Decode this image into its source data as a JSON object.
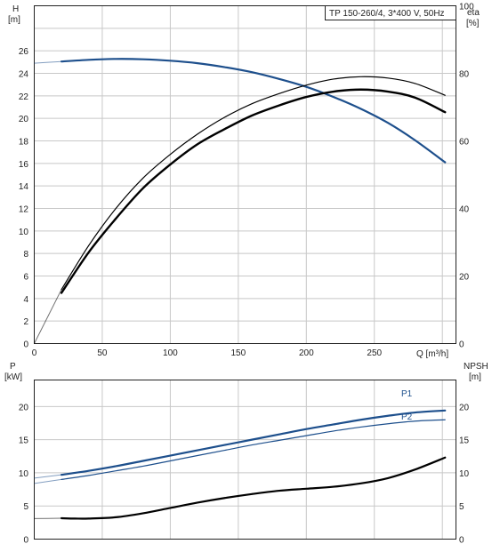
{
  "colors": {
    "blue": "#1d4f8c",
    "black": "#000000",
    "grid": "#c8c8c8",
    "frame": "#222222"
  },
  "chart_data": [
    {
      "type": "line",
      "title": "TP 150-260/4, 3*400 V, 50Hz",
      "xlabel": "Q [m³/h]",
      "ylabel_left": [
        "H",
        "[m]"
      ],
      "ylabel_right": [
        "eta",
        "[%]"
      ],
      "xlim": [
        0,
        310
      ],
      "ylim_left": [
        0,
        30
      ],
      "ylim_right": [
        0,
        100
      ],
      "x_ticks": [
        "0",
        "50",
        "100",
        "150",
        "200",
        "250"
      ],
      "x_tick_values": [
        0,
        50,
        100,
        150,
        200,
        250
      ],
      "y_left_ticks": [
        "0",
        "2",
        "4",
        "6",
        "8",
        "10",
        "12",
        "14",
        "16",
        "18",
        "20",
        "22",
        "24",
        "26"
      ],
      "y_left_tick_values": [
        0,
        2,
        4,
        6,
        8,
        10,
        12,
        14,
        16,
        18,
        20,
        22,
        24,
        26
      ],
      "y_right_ticks": [
        "0",
        "20",
        "40",
        "60",
        "80",
        "100"
      ],
      "y_right_tick_values": [
        0,
        20,
        40,
        60,
        80,
        100
      ],
      "grid": true,
      "series": [
        {
          "axis": "left",
          "color": "#1d4f8c",
          "width": 2.2,
          "x": [
            0,
            20,
            40,
            60,
            80,
            100,
            120,
            140,
            160,
            180,
            200,
            220,
            240,
            260,
            280,
            302
          ],
          "y": [
            24.9,
            25.05,
            25.2,
            25.28,
            25.25,
            25.12,
            24.9,
            24.55,
            24.1,
            23.5,
            22.8,
            21.9,
            20.85,
            19.6,
            18.05,
            16.1
          ],
          "dashed_until": 20
        },
        {
          "axis": "right",
          "color": "#000000",
          "width": 1.2,
          "x": [
            0,
            20,
            40,
            60,
            80,
            100,
            120,
            140,
            160,
            180,
            200,
            220,
            240,
            260,
            280,
            302
          ],
          "y": [
            0,
            16,
            29,
            40,
            49,
            56,
            62,
            67,
            71,
            74,
            76.5,
            78.3,
            79,
            78.6,
            77,
            73.5
          ],
          "dashed_until": 20
        },
        {
          "axis": "right",
          "color": "#000000",
          "width": 2.4,
          "x": [
            20,
            40,
            60,
            80,
            100,
            120,
            140,
            160,
            180,
            200,
            220,
            240,
            260,
            280,
            302
          ],
          "y": [
            15,
            27,
            37,
            46,
            53,
            59,
            63.5,
            67.5,
            70.5,
            73,
            74.6,
            75.2,
            74.6,
            72.8,
            68.5
          ]
        }
      ]
    },
    {
      "type": "line",
      "ylabel_left": [
        "P",
        "[kW]"
      ],
      "ylabel_right": [
        "NPSH",
        "[m]"
      ],
      "xlim": [
        0,
        310
      ],
      "ylim_left": [
        0,
        24
      ],
      "ylim_right": [
        0,
        24
      ],
      "y_left_ticks": [
        "0",
        "5",
        "10",
        "15",
        "20"
      ],
      "y_left_tick_values": [
        0,
        5,
        10,
        15,
        20
      ],
      "y_right_ticks": [
        "0",
        "5",
        "10",
        "15",
        "20"
      ],
      "y_right_tick_values": [
        0,
        5,
        10,
        15,
        20
      ],
      "grid": true,
      "series": [
        {
          "name": "P1",
          "axis": "left",
          "color": "#1d4f8c",
          "width": 2.2,
          "x": [
            0,
            20,
            40,
            60,
            80,
            100,
            120,
            140,
            160,
            180,
            200,
            220,
            240,
            260,
            280,
            302
          ],
          "y": [
            9.2,
            9.7,
            10.3,
            11.0,
            11.8,
            12.6,
            13.4,
            14.2,
            15.0,
            15.8,
            16.6,
            17.3,
            18.0,
            18.6,
            19.1,
            19.4
          ],
          "dashed_until": 20
        },
        {
          "name": "P2",
          "axis": "left",
          "color": "#1d4f8c",
          "width": 1.2,
          "x": [
            0,
            20,
            40,
            60,
            80,
            100,
            120,
            140,
            160,
            180,
            200,
            220,
            240,
            260,
            280,
            302
          ],
          "y": [
            8.4,
            9.0,
            9.6,
            10.3,
            11.0,
            11.8,
            12.6,
            13.4,
            14.2,
            14.9,
            15.6,
            16.3,
            16.9,
            17.4,
            17.8,
            18.0
          ],
          "dashed_until": 20
        },
        {
          "axis": "right",
          "color": "#000000",
          "width": 2.2,
          "x": [
            0,
            20,
            30,
            40,
            60,
            80,
            100,
            120,
            140,
            160,
            180,
            200,
            220,
            240,
            260,
            280,
            302
          ],
          "y": [
            3.1,
            3.15,
            3.1,
            3.1,
            3.3,
            3.9,
            4.7,
            5.5,
            6.2,
            6.8,
            7.3,
            7.6,
            7.9,
            8.4,
            9.2,
            10.5,
            12.3
          ],
          "dashed_until": 20
        }
      ]
    }
  ]
}
